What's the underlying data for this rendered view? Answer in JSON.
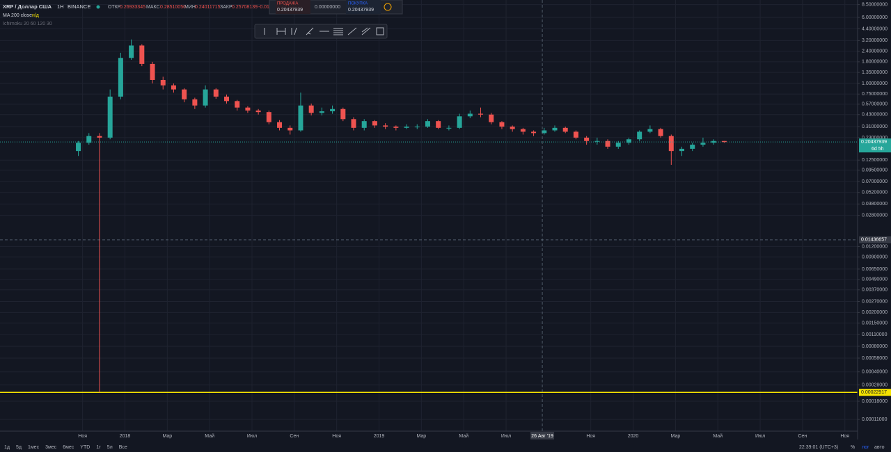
{
  "header": {
    "symbol": "XRP / Доллар США",
    "interval": "1Н",
    "exchange": "BINANCE",
    "open_label": "ОТКР",
    "open": "0.26933345",
    "high_label": "МАКС",
    "high": "0.28510050",
    "low_label": "МИН",
    "low": "0.24011715",
    "close_label": "ЗАКР",
    "close": "0.25708139",
    "change": "-0.01",
    "ma_label": "MA 200 close",
    "ma_value": "н/д",
    "ichimoku_label": "Ichimoku 20 60 120 30"
  },
  "order_panel": {
    "sell_label": "ПРОДАЖА",
    "sell_price": "0.20437939",
    "spread": "0.00000000",
    "buy_label": "ПОКУПКА",
    "buy_price": "0.20437939"
  },
  "footer": {
    "ranges": [
      "1д",
      "5д",
      "1мес",
      "3мес",
      "6мес",
      "YTD",
      "1г",
      "5л",
      "Все"
    ],
    "time": "22:39:01 (UTC+3)",
    "percent": "%",
    "log": "лог",
    "auto": "авто"
  },
  "chart_data": {
    "type": "candlestick",
    "up_color": "#26a69a",
    "down_color": "#ef5350",
    "log_scale": true,
    "grid": true,
    "x": [
      0.8,
      1.3,
      1.8,
      2.3,
      2.8,
      3.3,
      3.8,
      4.3,
      4.8,
      5.3,
      5.8,
      6.3,
      6.8,
      7.3,
      7.8,
      8.3,
      8.8,
      9.3,
      9.8,
      10.3,
      10.8,
      11.3,
      11.8,
      12.3,
      12.8,
      13.3,
      13.8,
      14.3,
      14.8,
      15.3,
      15.8,
      16.3,
      16.8,
      17.3,
      17.8,
      18.3,
      18.8,
      19.3,
      19.8,
      20.3,
      20.8,
      21.3,
      21.8,
      22.3,
      22.8,
      23.3,
      23.8,
      24.3,
      24.8,
      25.3,
      25.8,
      26.3,
      26.8,
      27.3,
      27.8,
      28.3,
      28.8,
      29.3,
      29.8,
      30.3,
      30.8,
      31.3
    ],
    "open": [
      0.16,
      0.2,
      0.24,
      0.23,
      0.7,
      2.0,
      2.8,
      1.7,
      1.1,
      0.95,
      0.85,
      0.65,
      0.55,
      0.85,
      0.7,
      0.62,
      0.52,
      0.48,
      0.46,
      0.35,
      0.3,
      0.28,
      0.55,
      0.45,
      0.47,
      0.5,
      0.38,
      0.3,
      0.36,
      0.32,
      0.31,
      0.3,
      0.31,
      0.31,
      0.36,
      0.3,
      0.3,
      0.41,
      0.44,
      0.43,
      0.35,
      0.31,
      0.29,
      0.27,
      0.26,
      0.28,
      0.3,
      0.27,
      0.23,
      0.21,
      0.21,
      0.18,
      0.2,
      0.22,
      0.27,
      0.29,
      0.24,
      0.16,
      0.17,
      0.19,
      0.2,
      0.21
    ],
    "high": [
      0.21,
      0.26,
      0.26,
      0.85,
      2.3,
      3.3,
      2.9,
      1.8,
      1.2,
      1.0,
      0.88,
      0.68,
      0.95,
      0.88,
      0.74,
      0.64,
      0.54,
      0.5,
      0.48,
      0.37,
      0.32,
      0.78,
      0.58,
      0.52,
      0.55,
      0.52,
      0.4,
      0.38,
      0.37,
      0.34,
      0.32,
      0.33,
      0.33,
      0.38,
      0.37,
      0.32,
      0.44,
      0.48,
      0.52,
      0.45,
      0.36,
      0.32,
      0.3,
      0.28,
      0.3,
      0.32,
      0.31,
      0.28,
      0.24,
      0.23,
      0.22,
      0.21,
      0.23,
      0.28,
      0.32,
      0.3,
      0.25,
      0.18,
      0.2,
      0.23,
      0.22,
      0.21
    ],
    "low": [
      0.14,
      0.19,
      0.00022917,
      0.22,
      0.65,
      1.9,
      1.6,
      1.0,
      0.85,
      0.78,
      0.6,
      0.5,
      0.52,
      0.66,
      0.58,
      0.48,
      0.45,
      0.43,
      0.33,
      0.28,
      0.25,
      0.27,
      0.42,
      0.42,
      0.44,
      0.36,
      0.28,
      0.28,
      0.3,
      0.29,
      0.28,
      0.29,
      0.29,
      0.3,
      0.29,
      0.28,
      0.29,
      0.39,
      0.4,
      0.33,
      0.29,
      0.27,
      0.25,
      0.24,
      0.25,
      0.27,
      0.26,
      0.22,
      0.19,
      0.19,
      0.17,
      0.17,
      0.19,
      0.21,
      0.26,
      0.23,
      0.11,
      0.14,
      0.16,
      0.18,
      0.19,
      0.2
    ],
    "close": [
      0.2,
      0.24,
      0.23,
      0.7,
      2.0,
      2.8,
      1.7,
      1.1,
      0.95,
      0.85,
      0.65,
      0.55,
      0.85,
      0.7,
      0.62,
      0.52,
      0.48,
      0.46,
      0.35,
      0.3,
      0.28,
      0.55,
      0.45,
      0.47,
      0.5,
      0.38,
      0.3,
      0.36,
      0.32,
      0.31,
      0.3,
      0.31,
      0.31,
      0.36,
      0.3,
      0.3,
      0.41,
      0.44,
      0.43,
      0.35,
      0.31,
      0.29,
      0.27,
      0.26,
      0.28,
      0.3,
      0.27,
      0.23,
      0.21,
      0.21,
      0.18,
      0.2,
      0.22,
      0.27,
      0.29,
      0.24,
      0.16,
      0.17,
      0.19,
      0.2,
      0.21,
      0.204
    ],
    "xlim": [
      -2.9,
      37.6
    ],
    "xticks": [
      {
        "value": 1,
        "label": "Ноя"
      },
      {
        "value": 3,
        "label": "2018"
      },
      {
        "value": 5,
        "label": "Мар"
      },
      {
        "value": 7,
        "label": "Май"
      },
      {
        "value": 9,
        "label": "Июл"
      },
      {
        "value": 11,
        "label": "Сен"
      },
      {
        "value": 13,
        "label": "Ноя"
      },
      {
        "value": 15,
        "label": "2019"
      },
      {
        "value": 17,
        "label": "Мар"
      },
      {
        "value": 19,
        "label": "Май"
      },
      {
        "value": 21,
        "label": "Июл"
      },
      {
        "value": 25,
        "label": "Ноя"
      },
      {
        "value": 27,
        "label": "2020"
      },
      {
        "value": 29,
        "label": "Мар"
      },
      {
        "value": 31,
        "label": "Май"
      },
      {
        "value": 33,
        "label": "Июл"
      },
      {
        "value": 35,
        "label": "Сен"
      },
      {
        "value": 37,
        "label": "Ноя"
      }
    ],
    "ylim": [
      8e-05,
      8.76
    ],
    "yticks": [
      {
        "value": 8.5,
        "label": "8.50000000"
      },
      {
        "value": 6,
        "label": "6.00000000"
      },
      {
        "value": 4.4,
        "label": "4.40000000"
      },
      {
        "value": 3.2,
        "label": "3.20000000"
      },
      {
        "value": 2.4,
        "label": "2.40000000"
      },
      {
        "value": 1.8,
        "label": "1.80000000"
      },
      {
        "value": 1.35,
        "label": "1.35000000"
      },
      {
        "value": 1,
        "label": "1.00000000"
      },
      {
        "value": 0.75,
        "label": "0.75000000"
      },
      {
        "value": 0.57,
        "label": "0.57000000"
      },
      {
        "value": 0.43,
        "label": "0.43000000"
      },
      {
        "value": 0.31,
        "label": "0.31000000"
      },
      {
        "value": 0.23,
        "label": "0.23000000"
      },
      {
        "value": 0.125,
        "label": "0.12500000"
      },
      {
        "value": 0.095,
        "label": "0.09500000"
      },
      {
        "value": 0.07,
        "label": "0.07000000"
      },
      {
        "value": 0.052,
        "label": "0.05200000"
      },
      {
        "value": 0.038,
        "label": "0.03800000"
      },
      {
        "value": 0.028,
        "label": "0.02800000"
      },
      {
        "value": 0.012,
        "label": "0.01200000"
      },
      {
        "value": 0.009,
        "label": "0.00900000"
      },
      {
        "value": 0.0065,
        "label": "0.00650000"
      },
      {
        "value": 0.0049,
        "label": "0.00490000"
      },
      {
        "value": 0.0037,
        "label": "0.00370000"
      },
      {
        "value": 0.0027,
        "label": "0.00270000"
      },
      {
        "value": 0.002,
        "label": "0.00200000"
      },
      {
        "value": 0.0015,
        "label": "0.00150000"
      },
      {
        "value": 0.0011,
        "label": "0.00110000"
      },
      {
        "value": 0.0008,
        "label": "0.00080000"
      },
      {
        "value": 0.00058,
        "label": "0.00058000"
      },
      {
        "value": 0.0004,
        "label": "0.00040000"
      },
      {
        "value": 0.00028,
        "label": "0.00028000"
      },
      {
        "value": 0.00018,
        "label": "0.00018000"
      },
      {
        "value": 0.00011,
        "label": "0.00011000"
      }
    ],
    "last_price": {
      "value": 0.20437939,
      "countdown": "6d 5h",
      "color": "#26a69a"
    },
    "horizontal_line": {
      "value": 0.00022917,
      "color": "#f5e300"
    },
    "crosshair": {
      "x": 22.71,
      "x_label": "26 Авг '19",
      "y": 0.01436657
    }
  }
}
